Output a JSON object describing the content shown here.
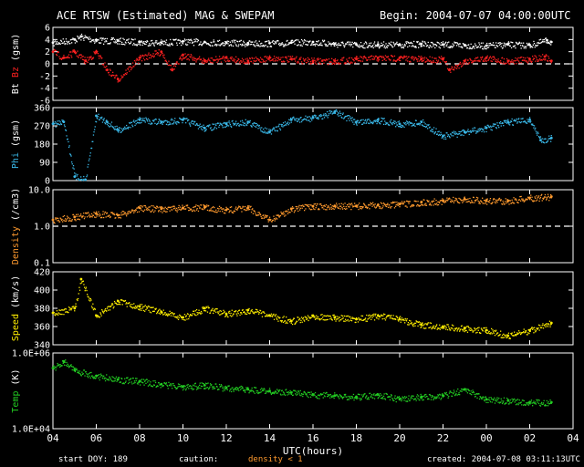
{
  "header": {
    "title": "ACE RTSW (Estimated) MAG & SWEPAM",
    "begin": "Begin: 2004-07-07 04:00:00UTC"
  },
  "footer": {
    "start_doy": "start DOY: 189",
    "caution": "caution:",
    "density_note": "density < 1",
    "created": "created: 2004-07-08 03:11:13UTC"
  },
  "colors": {
    "bt": "#ffffff",
    "bz": "#ff2020",
    "phi": "#3ab8e8",
    "density": "#ff9a2e",
    "speed": "#ffee00",
    "temp": "#22cc22",
    "axis": "#ffffff",
    "density_note": "#ff9a2e"
  },
  "chart_data": {
    "type": "scatter",
    "xlabel": "UTC(hours)",
    "x_ticks": [
      "04",
      "06",
      "08",
      "10",
      "12",
      "14",
      "16",
      "18",
      "20",
      "22",
      "00",
      "02",
      "04"
    ],
    "x_range_hours": [
      0,
      24
    ],
    "panels": [
      {
        "id": "mag",
        "ylabel_parts": [
          {
            "text": "Bt",
            "color": "#ffffff"
          },
          {
            "text": " Bz",
            "color": "#ff2020"
          },
          {
            "text": " (gsm)",
            "color": "#ffffff"
          }
        ],
        "ylim": [
          -6,
          6
        ],
        "yticks": [
          "6",
          "4",
          "2",
          "0",
          "-2",
          "-4",
          "-6"
        ],
        "dashed_reference": 0,
        "series": [
          {
            "name": "Bt",
            "color": "#ffffff",
            "x": [
              0,
              1,
              1.3,
              2,
              3,
              4,
              5,
              6,
              7,
              8,
              9,
              10,
              11,
              12,
              13,
              14,
              15,
              16,
              17,
              18,
              19,
              20,
              21,
              22,
              22.8,
              23
            ],
            "y": [
              3.5,
              4,
              4.5,
              3.9,
              3.8,
              3.6,
              3.5,
              3.7,
              3.6,
              3.5,
              3.4,
              3.4,
              3.5,
              3.6,
              3.3,
              3.2,
              3.2,
              3.2,
              3.3,
              3.2,
              3.1,
              3.0,
              3.2,
              3.1,
              3.9,
              3.6
            ]
          },
          {
            "name": "Bz",
            "color": "#ff2020",
            "x": [
              0,
              0.5,
              1,
              1.5,
              2,
              2.5,
              3,
              4,
              5,
              5.5,
              6,
              7,
              8,
              9,
              10,
              11,
              12,
              13,
              14,
              15,
              16,
              17,
              18,
              18.3,
              19,
              20,
              21,
              22,
              22.7,
              23
            ],
            "y": [
              2,
              1,
              2,
              0.5,
              2,
              -1,
              -2.5,
              1,
              2,
              -1,
              1.5,
              0.5,
              1,
              0.5,
              1,
              0.8,
              0.5,
              0.5,
              0.8,
              1,
              1,
              0.8,
              0.8,
              -1,
              0.5,
              1,
              0.5,
              0.8,
              1.2,
              0.5
            ]
          }
        ]
      },
      {
        "id": "phi",
        "ylabel_parts": [
          {
            "text": "Phi",
            "color": "#3ab8e8"
          },
          {
            "text": " (gsm)",
            "color": "#ffffff"
          }
        ],
        "ylim": [
          0,
          360
        ],
        "yticks": [
          "360",
          "270",
          "180",
          "90",
          "0"
        ],
        "series": [
          {
            "name": "Phi",
            "color": "#3ab8e8",
            "x": [
              0,
              0.5,
              1,
              1.5,
              2,
              2.5,
              3,
              4,
              5,
              6,
              7,
              8,
              9,
              10,
              11,
              12,
              13,
              14,
              15,
              16,
              17,
              18,
              19,
              20,
              21,
              22,
              22.5,
              23
            ],
            "y": [
              280,
              290,
              20,
              5,
              320,
              290,
              250,
              300,
              290,
              300,
              260,
              280,
              290,
              240,
              300,
              310,
              340,
              290,
              300,
              280,
              290,
              220,
              240,
              260,
              290,
              300,
              200,
              210
            ]
          }
        ]
      },
      {
        "id": "density",
        "ylabel_parts": [
          {
            "text": "Density",
            "color": "#ff9a2e"
          },
          {
            "text": " (/cm3)",
            "color": "#ffffff"
          }
        ],
        "ylim": [
          0.1,
          10
        ],
        "log": true,
        "yticks": [
          "10.0",
          "1.0",
          "0.1"
        ],
        "dashed_reference": 1.0,
        "series": [
          {
            "name": "Density",
            "color": "#ff9a2e",
            "x": [
              0,
              1,
              2,
              3,
              4,
              5,
              6,
              7,
              8,
              9,
              10,
              11,
              12,
              13,
              14,
              15,
              16,
              17,
              18,
              19,
              20,
              21,
              22,
              23
            ],
            "y": [
              1.5,
              1.8,
              2.2,
              2.0,
              3.2,
              3.0,
              3.2,
              3.3,
              2.8,
              3.2,
              1.5,
              3.0,
              3.5,
              3.6,
              3.6,
              3.8,
              4.0,
              4.5,
              5.0,
              5.5,
              5.0,
              5.0,
              6.0,
              6.5
            ]
          }
        ]
      },
      {
        "id": "speed",
        "ylabel_parts": [
          {
            "text": "Speed",
            "color": "#ffee00"
          },
          {
            "text": " (km/s)",
            "color": "#ffffff"
          }
        ],
        "ylim": [
          340,
          420
        ],
        "yticks": [
          "420",
          "400",
          "380",
          "360",
          "340"
        ],
        "series": [
          {
            "name": "Speed",
            "color": "#ffee00",
            "x": [
              0,
              1,
              1.3,
              2,
              3,
              4,
              5,
              6,
              7,
              8,
              9,
              10,
              11,
              12,
              13,
              14,
              15,
              16,
              17,
              18,
              19,
              20,
              21,
              22,
              23
            ],
            "y": [
              375,
              380,
              412,
              372,
              388,
              382,
              376,
              370,
              380,
              374,
              378,
              372,
              366,
              372,
              370,
              368,
              372,
              368,
              362,
              360,
              358,
              356,
              350,
              356,
              364
            ]
          }
        ]
      },
      {
        "id": "temp",
        "ylabel_parts": [
          {
            "text": "Temp",
            "color": "#22cc22"
          },
          {
            "text": " (K)",
            "color": "#ffffff"
          }
        ],
        "ylim": [
          10000,
          1000000
        ],
        "log": true,
        "yticks": [
          "1.0E+06",
          "1.0E+04"
        ],
        "series": [
          {
            "name": "Temp",
            "color": "#22cc22",
            "x": [
              0,
              0.5,
              1,
              2,
              3,
              4,
              5,
              6,
              7,
              8,
              9,
              10,
              11,
              12,
              13,
              14,
              15,
              16,
              17,
              18,
              19,
              20,
              21,
              22,
              23
            ],
            "y": [
              400000,
              600000,
              350000,
              250000,
              200000,
              180000,
              150000,
              130000,
              140000,
              120000,
              110000,
              100000,
              90000,
              80000,
              75000,
              70000,
              80000,
              60000,
              70000,
              75000,
              110000,
              60000,
              55000,
              50000,
              50000
            ]
          }
        ]
      }
    ]
  }
}
